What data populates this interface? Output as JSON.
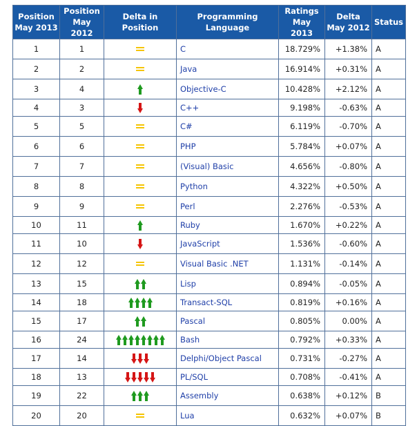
{
  "headers": {
    "pos2013": [
      "Position",
      "May 2013"
    ],
    "pos2012": [
      "Position",
      "May 2012"
    ],
    "delta_pos": "Delta in Position",
    "language": "Programming Language",
    "ratings": [
      "Ratings",
      "May 2013"
    ],
    "delta": [
      "Delta",
      "May 2012"
    ],
    "status": "Status"
  },
  "colors": {
    "header_bg": "#1a5aa6",
    "link": "#1f3fa8",
    "up": "#1f9a1f",
    "down": "#d51515",
    "same": "#f5c400"
  },
  "rows": [
    {
      "p2013": "1",
      "p2012": "1",
      "delta_kind": "same",
      "delta_count": 0,
      "lang": "C",
      "rating": "18.729%",
      "delta": "+1.38%",
      "status": "A"
    },
    {
      "p2013": "2",
      "p2012": "2",
      "delta_kind": "same",
      "delta_count": 0,
      "lang": "Java",
      "rating": "16.914%",
      "delta": "+0.31%",
      "status": "A"
    },
    {
      "p2013": "3",
      "p2012": "4",
      "delta_kind": "up",
      "delta_count": 1,
      "lang": "Objective-C",
      "rating": "10.428%",
      "delta": "+2.12%",
      "status": "A"
    },
    {
      "p2013": "4",
      "p2012": "3",
      "delta_kind": "down",
      "delta_count": 1,
      "lang": "C++",
      "rating": "9.198%",
      "delta": "-0.63%",
      "status": "A"
    },
    {
      "p2013": "5",
      "p2012": "5",
      "delta_kind": "same",
      "delta_count": 0,
      "lang": "C#",
      "rating": "6.119%",
      "delta": "-0.70%",
      "status": "A"
    },
    {
      "p2013": "6",
      "p2012": "6",
      "delta_kind": "same",
      "delta_count": 0,
      "lang": "PHP",
      "rating": "5.784%",
      "delta": "+0.07%",
      "status": "A"
    },
    {
      "p2013": "7",
      "p2012": "7",
      "delta_kind": "same",
      "delta_count": 0,
      "lang": "(Visual) Basic",
      "rating": "4.656%",
      "delta": "-0.80%",
      "status": "A"
    },
    {
      "p2013": "8",
      "p2012": "8",
      "delta_kind": "same",
      "delta_count": 0,
      "lang": "Python",
      "rating": "4.322%",
      "delta": "+0.50%",
      "status": "A"
    },
    {
      "p2013": "9",
      "p2012": "9",
      "delta_kind": "same",
      "delta_count": 0,
      "lang": "Perl",
      "rating": "2.276%",
      "delta": "-0.53%",
      "status": "A"
    },
    {
      "p2013": "10",
      "p2012": "11",
      "delta_kind": "up",
      "delta_count": 1,
      "lang": "Ruby",
      "rating": "1.670%",
      "delta": "+0.22%",
      "status": "A"
    },
    {
      "p2013": "11",
      "p2012": "10",
      "delta_kind": "down",
      "delta_count": 1,
      "lang": "JavaScript",
      "rating": "1.536%",
      "delta": "-0.60%",
      "status": "A"
    },
    {
      "p2013": "12",
      "p2012": "12",
      "delta_kind": "same",
      "delta_count": 0,
      "lang": "Visual Basic .NET",
      "rating": "1.131%",
      "delta": "-0.14%",
      "status": "A"
    },
    {
      "p2013": "13",
      "p2012": "15",
      "delta_kind": "up",
      "delta_count": 2,
      "lang": "Lisp",
      "rating": "0.894%",
      "delta": "-0.05%",
      "status": "A"
    },
    {
      "p2013": "14",
      "p2012": "18",
      "delta_kind": "up",
      "delta_count": 4,
      "lang": "Transact-SQL",
      "rating": "0.819%",
      "delta": "+0.16%",
      "status": "A"
    },
    {
      "p2013": "15",
      "p2012": "17",
      "delta_kind": "up",
      "delta_count": 2,
      "lang": "Pascal",
      "rating": "0.805%",
      "delta": "0.00%",
      "status": "A"
    },
    {
      "p2013": "16",
      "p2012": "24",
      "delta_kind": "up",
      "delta_count": 8,
      "lang": "Bash",
      "rating": "0.792%",
      "delta": "+0.33%",
      "status": "A"
    },
    {
      "p2013": "17",
      "p2012": "14",
      "delta_kind": "down",
      "delta_count": 3,
      "lang": "Delphi/Object Pascal",
      "rating": "0.731%",
      "delta": "-0.27%",
      "status": "A"
    },
    {
      "p2013": "18",
      "p2012": "13",
      "delta_kind": "down",
      "delta_count": 5,
      "lang": "PL/SQL",
      "rating": "0.708%",
      "delta": "-0.41%",
      "status": "A"
    },
    {
      "p2013": "19",
      "p2012": "22",
      "delta_kind": "up",
      "delta_count": 3,
      "lang": "Assembly",
      "rating": "0.638%",
      "delta": "+0.12%",
      "status": "B"
    },
    {
      "p2013": "20",
      "p2012": "20",
      "delta_kind": "same",
      "delta_count": 0,
      "lang": "Lua",
      "rating": "0.632%",
      "delta": "+0.07%",
      "status": "B"
    }
  ]
}
